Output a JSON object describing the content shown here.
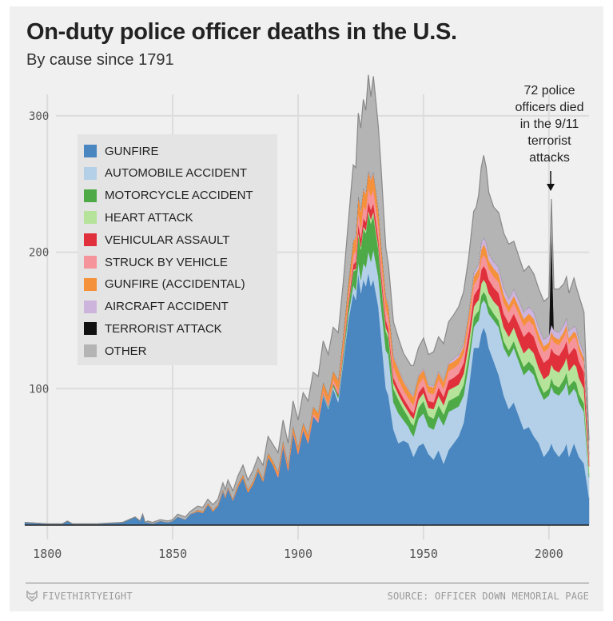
{
  "header": {
    "title": "On-duty police officer deaths in the U.S.",
    "subtitle": "By cause since 1791"
  },
  "annotation": {
    "lines": [
      "72 police",
      "officers died",
      "in the 9/11",
      "terrorist",
      "attacks"
    ]
  },
  "footer": {
    "brand": "FIVETHIRTYEIGHT",
    "source": "SOURCE: OFFICER DOWN MEMORIAL PAGE"
  },
  "chart_data": {
    "type": "area",
    "stacked": true,
    "title": "On-duty police officer deaths in the U.S.",
    "subtitle": "By cause since 1791",
    "xlabel": "",
    "ylabel": "",
    "xlim": [
      1791,
      2016
    ],
    "ylim": [
      0,
      320
    ],
    "x_ticks": [
      1800,
      1850,
      1900,
      1950,
      2000
    ],
    "y_ticks": [
      100,
      200,
      300
    ],
    "grid": true,
    "legend_position": "top-left",
    "series_colors": {
      "GUNFIRE": "#4a86bf",
      "AUTOMOBILE ACCIDENT": "#b3d0e8",
      "MOTORCYCLE ACCIDENT": "#4daa47",
      "HEART ATTACK": "#b5e39a",
      "VEHICULAR ASSAULT": "#e0303b",
      "STRUCK BY VEHICLE": "#f5949a",
      "GUNFIRE (ACCIDENTAL)": "#f5913a",
      "AIRCRAFT ACCIDENT": "#cdb4dc",
      "TERRORIST ATTACK": "#111111",
      "OTHER": "#b4b4b4"
    },
    "x": [
      1791,
      1800,
      1806,
      1808,
      1810,
      1820,
      1830,
      1835,
      1837,
      1838,
      1839,
      1840,
      1842,
      1845,
      1848,
      1850,
      1852,
      1855,
      1857,
      1860,
      1862,
      1864,
      1865,
      1866,
      1868,
      1870,
      1871,
      1872,
      1874,
      1876,
      1878,
      1880,
      1882,
      1884,
      1886,
      1888,
      1890,
      1892,
      1894,
      1896,
      1898,
      1900,
      1902,
      1904,
      1906,
      1908,
      1910,
      1912,
      1914,
      1916,
      1918,
      1920,
      1921,
      1922,
      1923,
      1924,
      1925,
      1926,
      1927,
      1928,
      1929,
      1930,
      1931,
      1932,
      1933,
      1934,
      1935,
      1936,
      1938,
      1940,
      1942,
      1944,
      1945,
      1946,
      1948,
      1950,
      1952,
      1954,
      1956,
      1958,
      1960,
      1962,
      1964,
      1966,
      1968,
      1970,
      1971,
      1972,
      1973,
      1974,
      1975,
      1976,
      1978,
      1980,
      1982,
      1984,
      1986,
      1988,
      1990,
      1992,
      1994,
      1996,
      1998,
      2000,
      2001,
      2002,
      2004,
      2006,
      2007,
      2008,
      2010,
      2011,
      2012,
      2014,
      2016
    ],
    "series": [
      {
        "name": "GUNFIRE",
        "values": [
          2,
          1,
          1,
          3,
          1,
          1,
          2,
          6,
          3,
          8,
          2,
          2,
          1,
          3,
          2,
          3,
          6,
          4,
          8,
          10,
          9,
          15,
          13,
          10,
          14,
          25,
          20,
          27,
          18,
          28,
          35,
          24,
          30,
          40,
          32,
          50,
          44,
          35,
          58,
          40,
          68,
          52,
          70,
          60,
          80,
          75,
          95,
          85,
          100,
          90,
          120,
          150,
          160,
          170,
          165,
          185,
          170,
          180,
          175,
          185,
          175,
          180,
          170,
          160,
          140,
          120,
          100,
          95,
          70,
          60,
          62,
          60,
          55,
          50,
          58,
          60,
          52,
          48,
          55,
          45,
          55,
          60,
          65,
          75,
          100,
          130,
          130,
          130,
          140,
          145,
          140,
          130,
          120,
          110,
          95,
          85,
          90,
          80,
          70,
          72,
          65,
          60,
          50,
          55,
          60,
          55,
          50,
          55,
          60,
          50,
          60,
          55,
          50,
          45,
          20
        ]
      },
      {
        "name": "AUTOMOBILE ACCIDENT",
        "values": [
          0,
          0,
          0,
          0,
          0,
          0,
          0,
          0,
          0,
          0,
          0,
          0,
          0,
          0,
          0,
          0,
          0,
          0,
          0,
          0,
          0,
          0,
          0,
          0,
          0,
          0,
          0,
          0,
          0,
          0,
          0,
          0,
          0,
          0,
          0,
          0,
          0,
          0,
          0,
          0,
          0,
          0,
          0,
          0,
          0,
          0,
          1,
          1,
          2,
          3,
          3,
          4,
          5,
          6,
          7,
          8,
          10,
          12,
          14,
          16,
          18,
          22,
          22,
          22,
          22,
          25,
          28,
          30,
          20,
          22,
          15,
          12,
          13,
          15,
          20,
          22,
          20,
          22,
          25,
          28,
          28,
          25,
          22,
          20,
          18,
          15,
          18,
          20,
          22,
          20,
          22,
          25,
          30,
          35,
          35,
          38,
          40,
          40,
          40,
          42,
          45,
          40,
          42,
          40,
          42,
          42,
          45,
          45,
          45,
          45,
          40,
          42,
          40,
          38,
          15
        ]
      },
      {
        "name": "MOTORCYCLE ACCIDENT",
        "values": [
          0,
          0,
          0,
          0,
          0,
          0,
          0,
          0,
          0,
          0,
          0,
          0,
          0,
          0,
          0,
          0,
          0,
          0,
          0,
          0,
          0,
          0,
          0,
          0,
          0,
          0,
          0,
          0,
          0,
          0,
          0,
          0,
          0,
          0,
          0,
          0,
          0,
          0,
          0,
          0,
          0,
          0,
          0,
          0,
          0,
          0,
          1,
          1,
          2,
          2,
          3,
          6,
          8,
          10,
          15,
          20,
          22,
          25,
          25,
          28,
          28,
          25,
          22,
          20,
          18,
          15,
          14,
          12,
          10,
          10,
          8,
          7,
          7,
          8,
          8,
          9,
          8,
          8,
          8,
          8,
          8,
          8,
          8,
          8,
          7,
          7,
          7,
          7,
          6,
          6,
          6,
          6,
          5,
          5,
          5,
          5,
          5,
          5,
          6,
          6,
          6,
          5,
          5,
          5,
          6,
          6,
          6,
          7,
          7,
          7,
          6,
          7,
          6,
          6,
          3
        ]
      },
      {
        "name": "HEART ATTACK",
        "values": [
          0,
          0,
          0,
          0,
          0,
          0,
          0,
          0,
          0,
          0,
          0,
          0,
          0,
          0,
          0,
          0,
          0,
          0,
          0,
          0,
          0,
          0,
          0,
          0,
          0,
          0,
          0,
          0,
          0,
          0,
          0,
          0,
          0,
          0,
          0,
          0,
          0,
          0,
          0,
          0,
          0,
          0,
          0,
          0,
          0,
          0,
          0,
          0,
          0,
          0,
          1,
          1,
          1,
          1,
          1,
          2,
          2,
          2,
          2,
          2,
          3,
          3,
          3,
          3,
          3,
          3,
          3,
          3,
          4,
          4,
          4,
          4,
          5,
          5,
          6,
          6,
          6,
          7,
          7,
          7,
          8,
          8,
          8,
          8,
          8,
          8,
          8,
          8,
          9,
          9,
          9,
          9,
          9,
          10,
          10,
          10,
          10,
          10,
          10,
          10,
          10,
          10,
          10,
          10,
          10,
          11,
          11,
          11,
          11,
          11,
          12,
          12,
          12,
          11,
          5
        ]
      },
      {
        "name": "VEHICULAR ASSAULT",
        "values": [
          0,
          0,
          0,
          0,
          0,
          0,
          0,
          0,
          0,
          0,
          0,
          0,
          0,
          0,
          0,
          0,
          0,
          0,
          0,
          0,
          0,
          0,
          0,
          0,
          0,
          0,
          0,
          0,
          0,
          0,
          0,
          0,
          0,
          0,
          0,
          0,
          0,
          0,
          0,
          0,
          0,
          0,
          0,
          0,
          0,
          0,
          0,
          0,
          0,
          1,
          1,
          2,
          3,
          4,
          5,
          6,
          6,
          6,
          6,
          6,
          7,
          6,
          6,
          5,
          5,
          5,
          5,
          4,
          4,
          4,
          4,
          4,
          4,
          4,
          5,
          5,
          5,
          5,
          6,
          6,
          7,
          7,
          8,
          8,
          8,
          8,
          8,
          9,
          10,
          10,
          10,
          10,
          10,
          10,
          10,
          10,
          10,
          12,
          12,
          12,
          12,
          12,
          12,
          12,
          12,
          12,
          12,
          12,
          12,
          12,
          12,
          12,
          12,
          12,
          4
        ]
      },
      {
        "name": "STRUCK BY VEHICLE",
        "values": [
          0,
          0,
          0,
          0,
          0,
          0,
          0,
          0,
          0,
          0,
          0,
          0,
          0,
          0,
          0,
          0,
          0,
          0,
          0,
          0,
          0,
          0,
          0,
          0,
          0,
          0,
          0,
          0,
          0,
          0,
          0,
          0,
          0,
          0,
          0,
          0,
          0,
          1,
          1,
          1,
          1,
          1,
          1,
          1,
          2,
          2,
          2,
          2,
          3,
          3,
          4,
          5,
          6,
          7,
          8,
          8,
          8,
          9,
          9,
          10,
          10,
          10,
          10,
          10,
          10,
          10,
          9,
          8,
          8,
          7,
          6,
          6,
          6,
          6,
          6,
          6,
          6,
          6,
          6,
          6,
          7,
          7,
          7,
          7,
          7,
          8,
          8,
          8,
          8,
          8,
          8,
          8,
          8,
          8,
          8,
          8,
          8,
          8,
          8,
          8,
          8,
          8,
          8,
          8,
          8,
          8,
          8,
          8,
          8,
          8,
          8,
          8,
          8,
          7,
          3
        ]
      },
      {
        "name": "GUNFIRE (ACCIDENTAL)",
        "values": [
          0,
          0,
          0,
          0,
          0,
          0,
          0,
          0,
          0,
          0,
          0,
          0,
          0,
          0,
          0,
          0,
          0,
          0,
          0,
          1,
          1,
          1,
          1,
          1,
          1,
          1,
          1,
          1,
          1,
          2,
          2,
          2,
          2,
          2,
          2,
          3,
          3,
          3,
          3,
          3,
          4,
          4,
          4,
          5,
          5,
          5,
          6,
          6,
          6,
          7,
          8,
          9,
          10,
          10,
          10,
          12,
          12,
          12,
          12,
          12,
          12,
          12,
          12,
          11,
          10,
          9,
          8,
          8,
          7,
          7,
          6,
          6,
          6,
          6,
          6,
          6,
          5,
          5,
          5,
          5,
          5,
          5,
          5,
          5,
          6,
          6,
          6,
          6,
          7,
          8,
          7,
          6,
          6,
          6,
          6,
          5,
          5,
          5,
          5,
          5,
          5,
          5,
          4,
          4,
          4,
          4,
          4,
          4,
          4,
          4,
          4,
          4,
          4,
          3,
          1
        ]
      },
      {
        "name": "AIRCRAFT ACCIDENT",
        "values": [
          0,
          0,
          0,
          0,
          0,
          0,
          0,
          0,
          0,
          0,
          0,
          0,
          0,
          0,
          0,
          0,
          0,
          0,
          0,
          0,
          0,
          0,
          0,
          0,
          0,
          0,
          0,
          0,
          0,
          0,
          0,
          0,
          0,
          0,
          0,
          0,
          0,
          0,
          0,
          0,
          0,
          0,
          0,
          0,
          0,
          0,
          0,
          0,
          0,
          0,
          0,
          0,
          0,
          1,
          1,
          1,
          1,
          1,
          1,
          1,
          1,
          1,
          1,
          1,
          1,
          1,
          1,
          1,
          1,
          1,
          1,
          1,
          1,
          1,
          1,
          1,
          1,
          1,
          1,
          1,
          1,
          2,
          2,
          2,
          2,
          3,
          3,
          4,
          5,
          5,
          5,
          5,
          5,
          5,
          5,
          5,
          5,
          5,
          5,
          5,
          5,
          5,
          5,
          5,
          5,
          5,
          5,
          5,
          5,
          5,
          4,
          4,
          4,
          4,
          1
        ]
      },
      {
        "name": "TERRORIST ATTACK",
        "values": [
          0,
          0,
          0,
          0,
          0,
          0,
          0,
          0,
          0,
          0,
          0,
          0,
          0,
          0,
          0,
          0,
          0,
          0,
          0,
          0,
          0,
          0,
          0,
          0,
          0,
          0,
          0,
          0,
          0,
          0,
          0,
          0,
          0,
          0,
          0,
          0,
          0,
          0,
          0,
          0,
          0,
          0,
          0,
          0,
          0,
          0,
          0,
          0,
          0,
          0,
          0,
          0,
          0,
          0,
          0,
          0,
          0,
          0,
          0,
          0,
          0,
          0,
          0,
          0,
          0,
          0,
          0,
          0,
          0,
          0,
          0,
          0,
          0,
          0,
          0,
          0,
          0,
          0,
          0,
          0,
          0,
          0,
          0,
          0,
          0,
          0,
          0,
          0,
          0,
          0,
          0,
          0,
          0,
          0,
          0,
          0,
          0,
          0,
          0,
          0,
          0,
          0,
          0,
          0,
          72,
          0,
          0,
          0,
          0,
          0,
          0,
          0,
          0,
          0,
          0
        ]
      },
      {
        "name": "OTHER",
        "values": [
          0,
          0,
          0,
          0,
          0,
          0,
          0,
          0,
          0,
          0,
          0,
          1,
          1,
          1,
          1,
          1,
          2,
          2,
          2,
          3,
          3,
          3,
          3,
          4,
          4,
          5,
          5,
          5,
          6,
          6,
          7,
          7,
          8,
          8,
          10,
          12,
          12,
          14,
          15,
          16,
          18,
          20,
          22,
          25,
          25,
          27,
          30,
          30,
          32,
          35,
          38,
          45,
          50,
          55,
          50,
          60,
          60,
          65,
          60,
          70,
          60,
          70,
          65,
          60,
          55,
          45,
          35,
          30,
          25,
          22,
          20,
          20,
          20,
          22,
          20,
          22,
          22,
          25,
          25,
          27,
          30,
          32,
          35,
          38,
          40,
          45,
          45,
          50,
          55,
          60,
          55,
          45,
          40,
          40,
          40,
          40,
          35,
          32,
          30,
          30,
          28,
          28,
          28,
          28,
          20,
          30,
          32,
          30,
          30,
          28,
          35,
          30,
          32,
          30,
          10
        ]
      }
    ]
  },
  "legend": {
    "items": [
      {
        "label": "GUNFIRE",
        "color": "#4a86bf"
      },
      {
        "label": "AUTOMOBILE ACCIDENT",
        "color": "#b3d0e8"
      },
      {
        "label": "MOTORCYCLE ACCIDENT",
        "color": "#4daa47"
      },
      {
        "label": "HEART ATTACK",
        "color": "#b5e39a"
      },
      {
        "label": "VEHICULAR ASSAULT",
        "color": "#e0303b"
      },
      {
        "label": "STRUCK BY VEHICLE",
        "color": "#f5949a"
      },
      {
        "label": "GUNFIRE (ACCIDENTAL)",
        "color": "#f5913a"
      },
      {
        "label": "AIRCRAFT ACCIDENT",
        "color": "#cdb4dc"
      },
      {
        "label": "TERRORIST ATTACK",
        "color": "#111111"
      },
      {
        "label": "OTHER",
        "color": "#b4b4b4"
      }
    ]
  }
}
